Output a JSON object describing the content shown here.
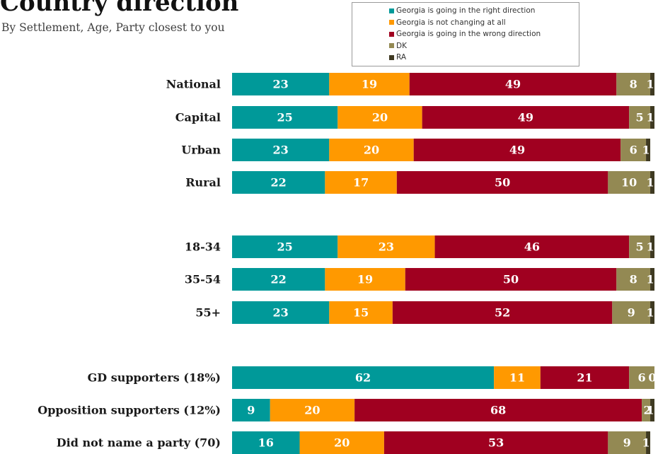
{
  "chart_data": {
    "type": "bar",
    "orientation": "horizontal",
    "stacked": true,
    "title": "Country direction",
    "subtitle": "By Settlement, Age, Party closest to you",
    "legend_position": "top-right",
    "xlim": [
      0,
      100
    ],
    "categories": [
      "National",
      "Capital",
      "Urban",
      "Rural",
      "18-34",
      "35-54",
      "55+",
      "GD supporters (18%)",
      "Opposition supporters (12%)",
      "Did not name a party (70)"
    ],
    "series": [
      {
        "name": "Georgia is going in the right direction",
        "color": "#009999",
        "values": [
          23,
          25,
          23,
          22,
          25,
          22,
          23,
          62,
          9,
          16
        ]
      },
      {
        "name": "Georgia is not changing at all",
        "color": "#FF9900",
        "values": [
          19,
          20,
          20,
          17,
          23,
          19,
          15,
          11,
          20,
          20
        ]
      },
      {
        "name": "Georgia is going in the wrong direction",
        "color": "#A00020",
        "values": [
          49,
          49,
          49,
          50,
          46,
          50,
          52,
          21,
          68,
          53
        ]
      },
      {
        "name": "DK",
        "color": "#938953",
        "values": [
          8,
          5,
          6,
          10,
          5,
          8,
          9,
          6,
          2,
          9
        ]
      },
      {
        "name": "RA",
        "color": "#3F3A22",
        "values": [
          1,
          1,
          1,
          1,
          1,
          1,
          1,
          0,
          1,
          1
        ]
      }
    ]
  }
}
